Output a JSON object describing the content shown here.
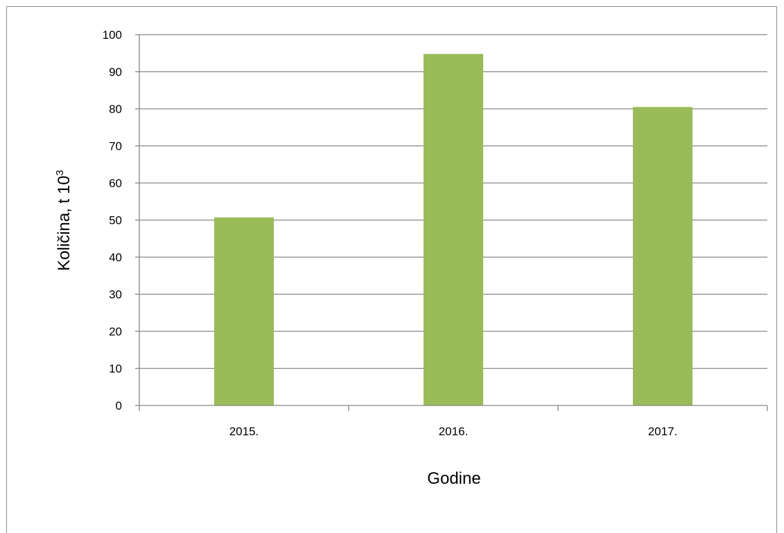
{
  "chart_data": {
    "type": "bar",
    "title": "",
    "categories": [
      "2015.",
      "2016.",
      "2017."
    ],
    "values": [
      50.7,
      94.8,
      80.5
    ],
    "xlabel": "Godine",
    "ylabel": "Količina, t 10",
    "ylabel_superscript": "3",
    "ylim": [
      0,
      100
    ],
    "yticks": [
      0,
      10,
      20,
      30,
      40,
      50,
      60,
      70,
      80,
      90,
      100
    ],
    "grid": true,
    "legend": "none",
    "bar_color": "#9bbb59",
    "grid_color": "#868686"
  }
}
